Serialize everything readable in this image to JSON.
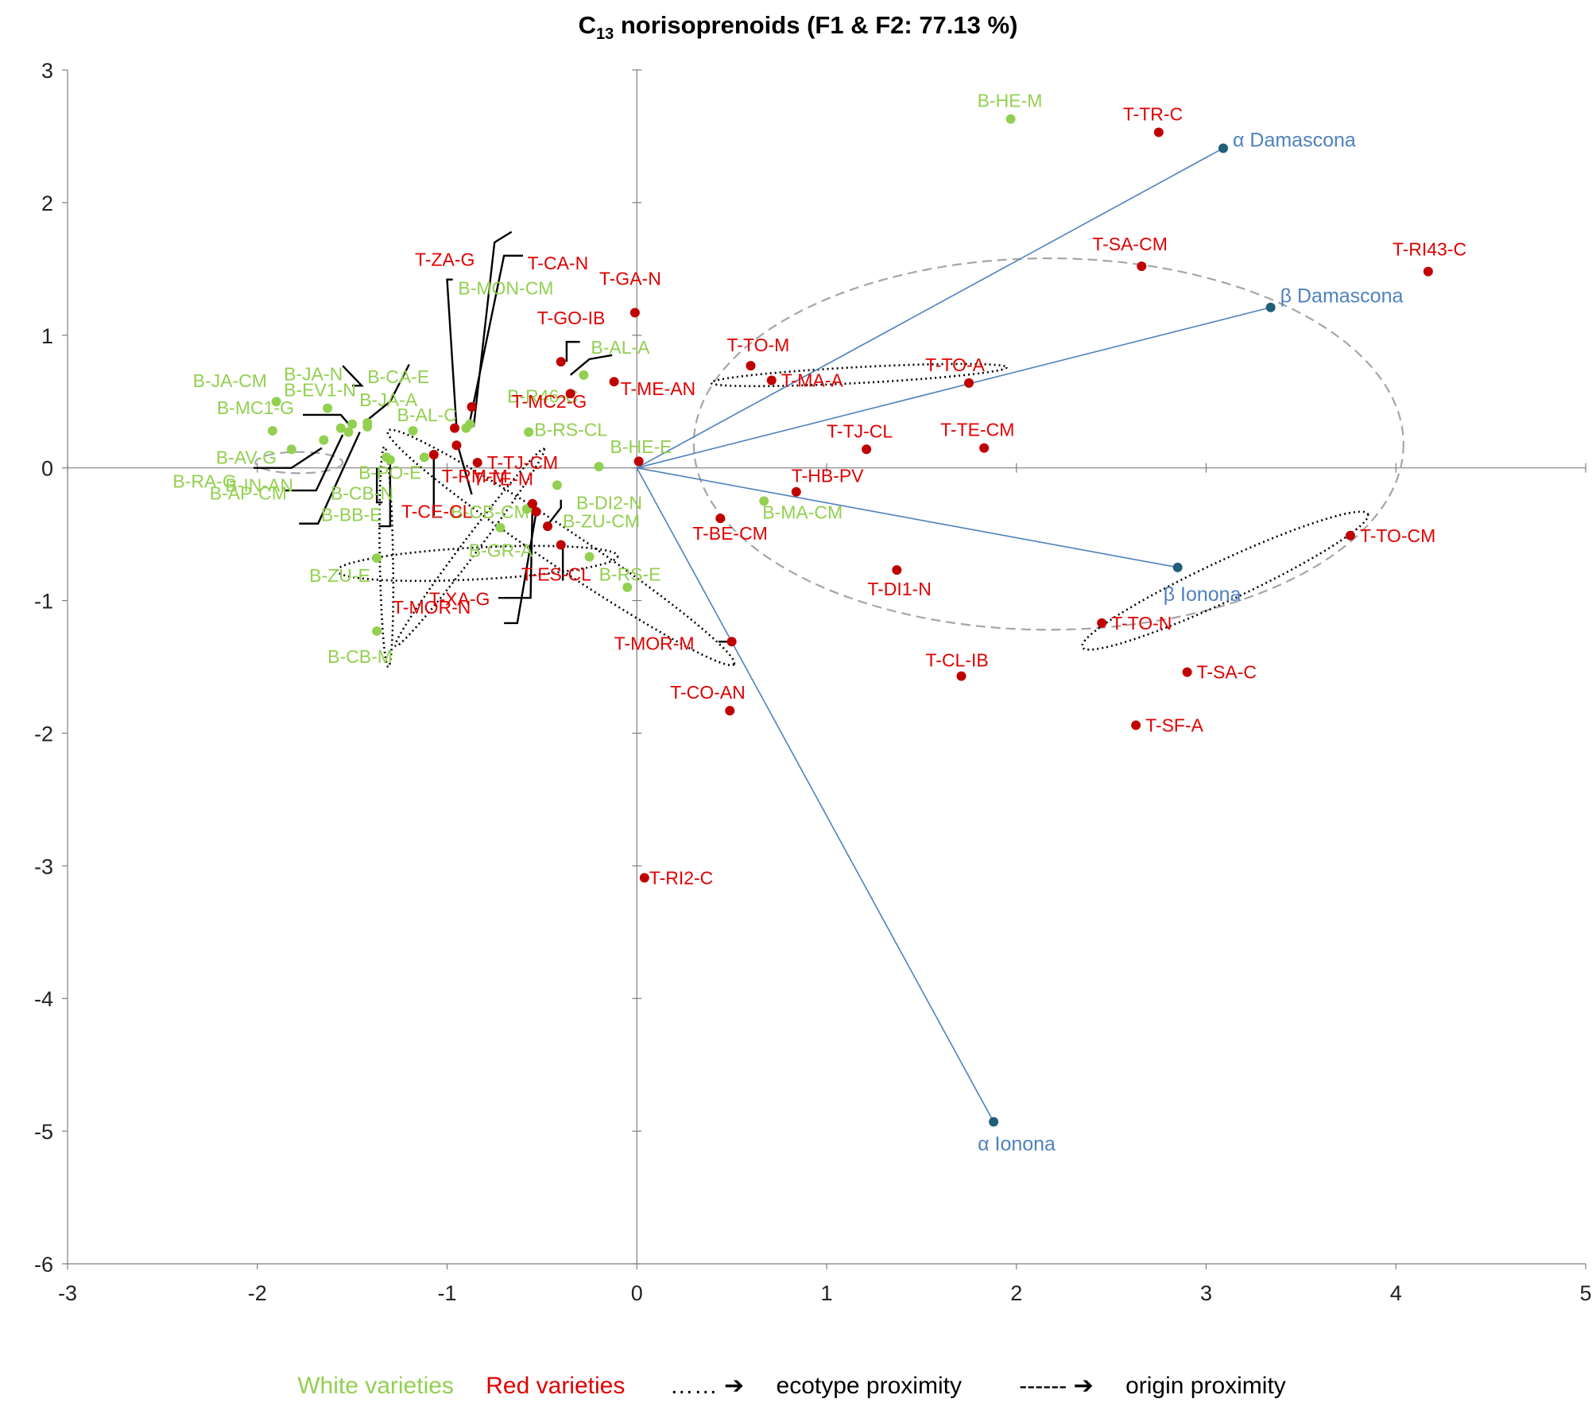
{
  "chart_data": {
    "type": "scatter",
    "title_pre": "C",
    "title_sub": "13",
    "title_post": " norisoprenoids (F1 & F2: 77.13 %)",
    "xlim": [
      -3,
      5
    ],
    "ylim": [
      -6,
      3
    ],
    "x_ticks": [
      -3,
      -2,
      -1,
      0,
      1,
      2,
      3,
      4,
      5
    ],
    "y_ticks": [
      3,
      2,
      1,
      0,
      -1,
      -2,
      -3,
      -4,
      -5,
      -6
    ],
    "colors": {
      "white": "#92d050",
      "red": "#c00000",
      "red_label": "#e00000",
      "vector": "#4f81bd",
      "vector_point": "#1f5f7a",
      "axis": "#7f7f7f"
    },
    "series": [
      {
        "name": "White varieties",
        "points": [
          {
            "label": "B-HE-M",
            "x": 1.97,
            "y": 2.63
          },
          {
            "label": "B-MON-CM",
            "x": -0.9,
            "y": 0.3
          },
          {
            "label": "B-JA-N",
            "x": -1.5,
            "y": 0.33
          },
          {
            "label": "B-CA-E",
            "x": -1.42,
            "y": 0.31
          },
          {
            "label": "B-JA-CM",
            "x": -1.9,
            "y": 0.5
          },
          {
            "label": "B-EV1-N",
            "x": -1.63,
            "y": 0.45
          },
          {
            "label": "B-JA-A",
            "x": -1.42,
            "y": 0.34
          },
          {
            "label": "B-MC1-G",
            "x": -1.92,
            "y": 0.28
          },
          {
            "label": "B-AL-C",
            "x": -1.18,
            "y": 0.28
          },
          {
            "label": "B-AV-G",
            "x": -1.82,
            "y": 0.14
          },
          {
            "label": "B-PO-E",
            "x": -1.32,
            "y": 0.08
          },
          {
            "label": "B-RA-G",
            "x": -1.65,
            "y": 0.21
          },
          {
            "label": "B-IN-AN",
            "x": -1.52,
            "y": 0.27
          },
          {
            "label": "B-CB-N",
            "x": -1.3,
            "y": 0.06
          },
          {
            "label": "B-AP-CM",
            "x": -1.56,
            "y": 0.3
          },
          {
            "label": "B-BB-E",
            "x": -1.12,
            "y": 0.08
          },
          {
            "label": "B-R46-C",
            "x": -0.88,
            "y": 0.33
          },
          {
            "label": "B-AL-A",
            "x": -0.28,
            "y": 0.7
          },
          {
            "label": "B-RS-CL",
            "x": -0.57,
            "y": 0.27
          },
          {
            "label": "B-HE-E",
            "x": -0.2,
            "y": 0.01
          },
          {
            "label": "B-DI2-N",
            "x": -0.42,
            "y": -0.13
          },
          {
            "label": "B-CB-CM",
            "x": -0.72,
            "y": -0.45
          },
          {
            "label": "B-GR-A",
            "x": -0.58,
            "y": -0.31
          },
          {
            "label": "B-ZU-CM",
            "x": -0.55,
            "y": -0.3
          },
          {
            "label": "B-ZU-E",
            "x": -1.37,
            "y": -0.68
          },
          {
            "label": "B-RS-E",
            "x": -0.25,
            "y": -0.67
          },
          {
            "label": "B-CB-M",
            "x": -1.37,
            "y": -1.23
          },
          {
            "label": "B-MA-CM",
            "x": 0.67,
            "y": -0.25
          },
          {
            "label": "",
            "x": -0.05,
            "y": -0.9
          }
        ]
      },
      {
        "name": "Red varieties",
        "points": [
          {
            "label": "T-TR-C",
            "x": 2.75,
            "y": 2.53
          },
          {
            "label": "T-RI43-C",
            "x": 4.17,
            "y": 1.48
          },
          {
            "label": "T-SA-CM",
            "x": 2.66,
            "y": 1.52
          },
          {
            "label": "T-ZA-G",
            "x": -0.96,
            "y": 0.3
          },
          {
            "label": "T-CA-N",
            "x": -0.87,
            "y": 0.46
          },
          {
            "label": "T-GA-N",
            "x": -0.01,
            "y": 1.17
          },
          {
            "label": "T-GO-IB",
            "x": -0.4,
            "y": 0.8
          },
          {
            "label": "T-ME-AN",
            "x": -0.12,
            "y": 0.65
          },
          {
            "label": "T-MC2-G",
            "x": -0.35,
            "y": 0.56
          },
          {
            "label": "T-TO-M",
            "x": 0.6,
            "y": 0.77
          },
          {
            "label": "T-MA-A",
            "x": 0.71,
            "y": 0.66
          },
          {
            "label": "T-TO-A",
            "x": 1.75,
            "y": 0.64
          },
          {
            "label": "T-TJ-CL",
            "x": 1.21,
            "y": 0.14
          },
          {
            "label": "T-TE-CM",
            "x": 1.83,
            "y": 0.15
          },
          {
            "label": "T-TJ-CM",
            "x": -0.84,
            "y": 0.04
          },
          {
            "label": "T-TE-M",
            "x": -0.95,
            "y": 0.17
          },
          {
            "label": "T-RM-M",
            "x": -1.07,
            "y": 0.1
          },
          {
            "label": "T-HB-PV",
            "x": 0.84,
            "y": -0.18
          },
          {
            "label": "T-BE-CM",
            "x": 0.44,
            "y": -0.38
          },
          {
            "label": "T-CE-CL",
            "x": -0.55,
            "y": -0.27
          },
          {
            "label": "T-MOR-N",
            "x": -0.47,
            "y": -0.44
          },
          {
            "label": "T-ES-CL",
            "x": -0.4,
            "y": -0.58
          },
          {
            "label": "T-XA-G",
            "x": -0.53,
            "y": -0.33
          },
          {
            "label": "T-DI1-N",
            "x": 1.37,
            "y": -0.77
          },
          {
            "label": "T-TO-CM",
            "x": 3.76,
            "y": -0.51
          },
          {
            "label": "T-TO-N",
            "x": 2.45,
            "y": -1.17
          },
          {
            "label": "T-MOR-M",
            "x": 0.5,
            "y": -1.31
          },
          {
            "label": "T-CL-IB",
            "x": 1.71,
            "y": -1.57
          },
          {
            "label": "T-SA-C",
            "x": 2.9,
            "y": -1.54
          },
          {
            "label": "T-CO-AN",
            "x": 0.49,
            "y": -1.83
          },
          {
            "label": "T-SF-A",
            "x": 2.63,
            "y": -1.94
          },
          {
            "label": "T-RI2-C",
            "x": 0.04,
            "y": -3.09
          },
          {
            "label": "",
            "x": 0.01,
            "y": 0.05
          }
        ]
      }
    ],
    "vectors": [
      {
        "label": "α Damascona",
        "x": 3.09,
        "y": 2.41
      },
      {
        "label": "β Damascona",
        "x": 3.34,
        "y": 1.21
      },
      {
        "label": "β Ionona",
        "x": 2.85,
        "y": -0.75
      },
      {
        "label": "α Ionona",
        "x": 1.88,
        "y": -4.93
      }
    ],
    "ellipses": [
      {
        "kind": "origin",
        "cx": 2.17,
        "cy": 0.18,
        "rx": 1.87,
        "ry": 1.4,
        "angle": 0
      },
      {
        "kind": "origin",
        "cx": -1.78,
        "cy": 0.04,
        "rx": 0.23,
        "ry": 0.08,
        "angle": 0
      },
      {
        "kind": "ecotype",
        "cx": 1.17,
        "cy": 0.7,
        "rx": 0.78,
        "ry": 0.06,
        "angle": -3
      },
      {
        "kind": "ecotype",
        "cx": 3.1,
        "cy": -0.85,
        "rx": 0.83,
        "ry": 0.15,
        "angle": -25
      },
      {
        "kind": "ecotype",
        "cx": -0.4,
        "cy": -0.6,
        "rx": 1.1,
        "ry": 0.14,
        "angle": 34
      },
      {
        "kind": "ecotype",
        "cx": -0.84,
        "cy": -0.72,
        "rx": 0.74,
        "ry": 0.12,
        "angle": -3
      },
      {
        "kind": "ecotype",
        "cx": -1.32,
        "cy": -0.67,
        "rx": 0.58,
        "ry": 0.05,
        "angle": 89
      },
      {
        "kind": "ecotype",
        "cx": -0.88,
        "cy": -0.6,
        "rx": 0.65,
        "ry": 0.06,
        "angle": -53
      }
    ],
    "leaders": [
      {
        "a": [
          -0.95,
          0.3
        ],
        "b": [
          -1.0,
          1.42
        ],
        "c": [
          -0.97,
          1.42
        ]
      },
      {
        "a": [
          -0.88,
          0.35
        ],
        "b": [
          -0.7,
          1.6
        ],
        "c": [
          -0.6,
          1.6
        ]
      },
      {
        "a": [
          -0.86,
          0.31
        ],
        "b": [
          -0.75,
          1.7
        ],
        "c": [
          -0.66,
          1.78
        ]
      },
      {
        "a": [
          -1.43,
          0.35
        ],
        "b": [
          -1.3,
          0.5
        ],
        "c": [
          -1.2,
          0.78
        ]
      },
      {
        "a": [
          -1.5,
          0.62
        ],
        "b": [
          -1.45,
          0.62
        ],
        "c": [
          -1.55,
          0.77
        ]
      },
      {
        "a": [
          -1.76,
          0.4
        ],
        "b": [
          -1.56,
          0.4
        ],
        "c": [
          -1.5,
          0.3
        ]
      },
      {
        "a": [
          -2.02,
          0.0
        ],
        "b": [
          -1.82,
          0.0
        ],
        "c": [
          -1.66,
          0.15
        ]
      },
      {
        "a": [
          -1.86,
          -0.17
        ],
        "b": [
          -1.69,
          -0.17
        ],
        "c": [
          -1.55,
          0.25
        ]
      },
      {
        "a": [
          -1.78,
          -0.42
        ],
        "b": [
          -1.68,
          -0.42
        ],
        "c": [
          -1.46,
          0.27
        ]
      },
      {
        "a": [
          -1.34,
          -0.26
        ],
        "b": [
          -1.37,
          -0.26
        ],
        "c": [
          -1.37,
          0.0
        ]
      },
      {
        "a": [
          -1.36,
          -0.44
        ],
        "b": [
          -1.3,
          -0.44
        ],
        "c": [
          -1.3,
          0.05
        ]
      },
      {
        "a": [
          -1.07,
          0.08
        ],
        "b": [
          -1.07,
          -0.36
        ],
        "c": [
          -1.07,
          -0.36
        ]
      },
      {
        "a": [
          -0.94,
          0.15
        ],
        "b": [
          -0.87,
          -0.2
        ],
        "c": [
          -0.87,
          -0.2
        ]
      },
      {
        "a": [
          -0.73,
          -0.98
        ],
        "b": [
          -0.56,
          -0.98
        ],
        "c": [
          -0.55,
          -0.27
        ]
      },
      {
        "a": [
          -0.7,
          -1.17
        ],
        "b": [
          -0.63,
          -1.17
        ],
        "c": [
          -0.53,
          -0.33
        ]
      },
      {
        "a": [
          -0.47,
          -0.43
        ],
        "b": [
          -0.4,
          -0.3
        ],
        "c": [
          -0.4,
          -0.24
        ]
      },
      {
        "a": [
          -0.39,
          -0.6
        ],
        "b": [
          -0.39,
          -0.85
        ],
        "c": [
          -0.39,
          -0.85
        ]
      },
      {
        "a": [
          -0.35,
          0.7
        ],
        "b": [
          -0.25,
          0.82
        ],
        "c": [
          -0.13,
          0.85
        ]
      },
      {
        "a": [
          -0.37,
          0.8
        ],
        "b": [
          -0.37,
          0.95
        ],
        "c": [
          -0.3,
          0.95
        ]
      },
      {
        "a": [
          0.49,
          -1.31
        ],
        "b": [
          0.43,
          -1.31
        ],
        "c": [
          0.43,
          -1.31
        ]
      }
    ]
  },
  "legend": {
    "white": "White varieties",
    "red": "Red varieties",
    "ecotype_symbol": "…… ➔",
    "ecotype": "ecotype proximity",
    "origin_symbol": "------ ➔",
    "origin": "origin proximity"
  }
}
